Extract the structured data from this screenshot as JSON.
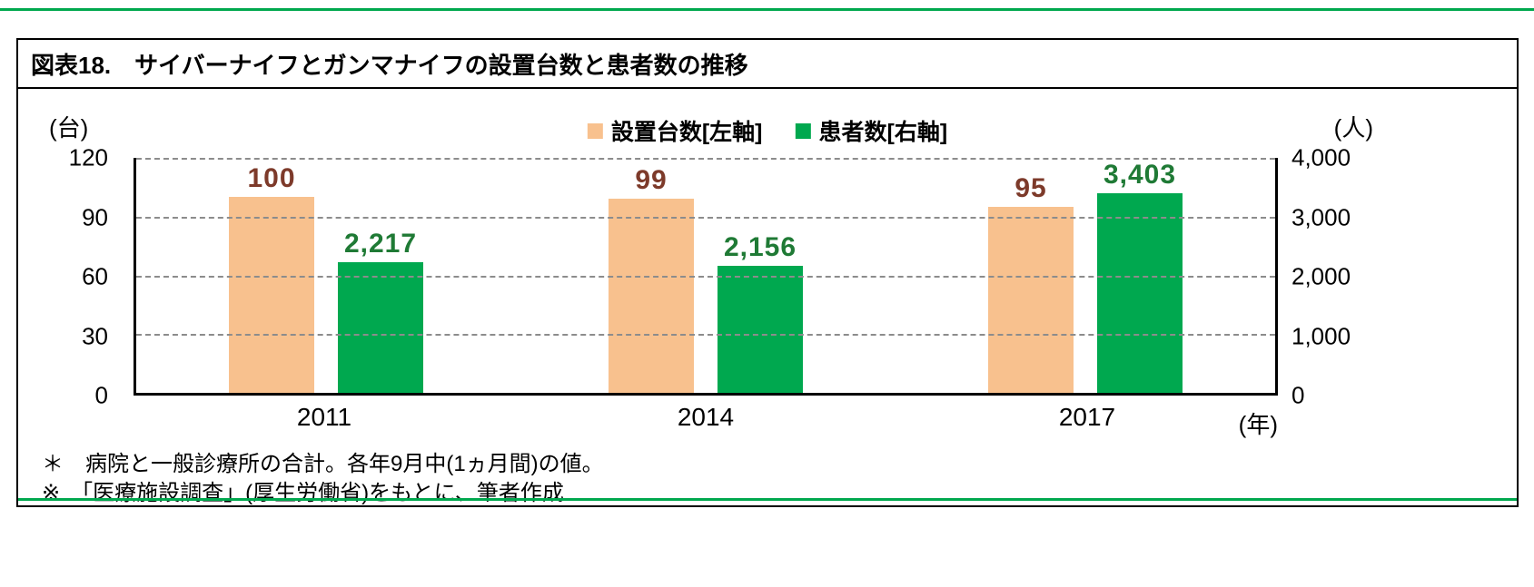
{
  "colors": {
    "rule_green": "#00A84E",
    "grid": "#8C8C8C",
    "axis": "#000000"
  },
  "header": {
    "title": "図表18.　サイバーナイフとガンマナイフの設置台数と患者数の推移"
  },
  "footnotes": [
    "＊　病院と一般診療所の合計。各年9月中(1ヵ月間)の値。",
    "※　「医療施設調査」(厚生労働省)をもとに、筆者作成"
  ],
  "chart_data": {
    "type": "bar",
    "title": "図表18.　サイバーナイフとガンマナイフの設置台数と患者数の推移",
    "categories": [
      "2011",
      "2014",
      "2017"
    ],
    "series": [
      {
        "name": "設置台数[左軸]",
        "axis": "left",
        "color": "#F8C18E",
        "label_color": "#7D3A2A",
        "values": [
          100,
          99,
          95
        ],
        "labels": [
          "100",
          "99",
          "95"
        ]
      },
      {
        "name": "患者数[右軸]",
        "axis": "right",
        "color": "#00A84F",
        "label_color": "#1F7A35",
        "values": [
          2217,
          2156,
          3403
        ],
        "labels": [
          "2,217",
          "2,156",
          "3,403"
        ]
      }
    ],
    "left_axis": {
      "unit": "(台)",
      "min": 0,
      "max": 120,
      "ticks": [
        "120",
        "90",
        "60",
        "30",
        "0"
      ]
    },
    "right_axis": {
      "unit": "(人)",
      "min": 0,
      "max": 4000,
      "ticks": [
        "4,000",
        "3,000",
        "2,000",
        "1,000",
        "0"
      ]
    },
    "x_unit": "(年)",
    "grid": "dashed-horizontal",
    "legend_position": "top-center"
  }
}
